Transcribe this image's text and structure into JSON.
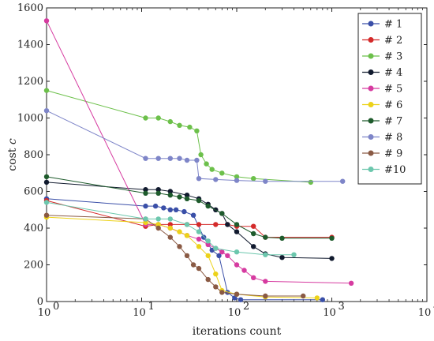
{
  "chart_data": {
    "type": "line",
    "xscale": "log",
    "xlim": [
      1,
      10000
    ],
    "ylim": [
      0,
      1600
    ],
    "xlabel": "iterations count",
    "ylabel": "cost c",
    "grid": false,
    "legend_position": "top-right",
    "x_ticks": [
      1,
      10,
      100,
      1000,
      10000
    ],
    "x_tick_labels": [
      "10",
      "10",
      "10",
      "10",
      "10"
    ],
    "x_tick_exponents": [
      "0",
      "1",
      "2",
      "3",
      "4"
    ],
    "y_ticks": [
      0,
      200,
      400,
      600,
      800,
      1000,
      1200,
      1400,
      1600
    ],
    "y_tick_labels": [
      "0",
      "200",
      "400",
      "600",
      "800",
      "1000",
      "1200",
      "1400",
      "1600"
    ],
    "series": [
      {
        "name": "# 1",
        "color": "#3a4fa8",
        "x": [
          1,
          11,
          14,
          17,
          20,
          23,
          28,
          35,
          45,
          55,
          65,
          80,
          95,
          110,
          800
        ],
        "y": [
          560,
          520,
          520,
          510,
          500,
          500,
          490,
          470,
          350,
          280,
          250,
          50,
          20,
          10,
          10
        ]
      },
      {
        "name": "# 2",
        "color": "#d42a2a",
        "x": [
          1,
          11,
          15,
          20,
          30,
          40,
          60,
          80,
          100,
          150,
          200,
          1000
        ],
        "y": [
          550,
          410,
          420,
          420,
          420,
          420,
          420,
          420,
          410,
          410,
          350,
          350
        ]
      },
      {
        "name": "# 3",
        "color": "#6cc04a",
        "x": [
          1,
          11,
          15,
          20,
          25,
          32,
          38,
          42,
          48,
          55,
          70,
          100,
          150,
          600
        ],
        "y": [
          1150,
          1000,
          1000,
          980,
          960,
          950,
          930,
          800,
          750,
          720,
          700,
          680,
          670,
          650
        ]
      },
      {
        "name": "# 4",
        "color": "#111a2e",
        "x": [
          1,
          11,
          15,
          20,
          30,
          40,
          50,
          60,
          70,
          80,
          100,
          150,
          200,
          300,
          1000
        ],
        "y": [
          650,
          610,
          610,
          600,
          580,
          560,
          530,
          500,
          480,
          420,
          380,
          300,
          260,
          240,
          235
        ]
      },
      {
        "name": "# 5",
        "color": "#d63ba0",
        "x": [
          1,
          11,
          15,
          20,
          30,
          40,
          50,
          60,
          70,
          80,
          100,
          120,
          150,
          200,
          1600
        ],
        "y": [
          1530,
          420,
          420,
          400,
          360,
          340,
          310,
          290,
          270,
          250,
          200,
          170,
          130,
          110,
          100
        ]
      },
      {
        "name": "# 6",
        "color": "#ecd21a",
        "x": [
          1,
          11,
          15,
          20,
          25,
          30,
          40,
          50,
          60,
          70,
          100,
          200,
          700
        ],
        "y": [
          460,
          430,
          420,
          400,
          380,
          360,
          300,
          250,
          150,
          60,
          40,
          25,
          20
        ]
      },
      {
        "name": "# 7",
        "color": "#1e5b2c",
        "x": [
          1,
          11,
          15,
          20,
          25,
          30,
          40,
          50,
          70,
          100,
          150,
          200,
          300,
          1000
        ],
        "y": [
          680,
          590,
          590,
          580,
          570,
          560,
          550,
          520,
          480,
          420,
          370,
          350,
          345,
          345
        ]
      },
      {
        "name": "# 8",
        "color": "#7e85c8",
        "x": [
          1,
          11,
          15,
          20,
          25,
          30,
          38,
          40,
          60,
          100,
          200,
          1300
        ],
        "y": [
          1040,
          780,
          780,
          780,
          780,
          770,
          770,
          670,
          665,
          660,
          655,
          655
        ]
      },
      {
        "name": "# 9",
        "color": "#8a5a44",
        "x": [
          1,
          11,
          15,
          20,
          25,
          30,
          35,
          40,
          50,
          60,
          70,
          100,
          200,
          500
        ],
        "y": [
          470,
          450,
          400,
          350,
          300,
          250,
          200,
          180,
          120,
          80,
          50,
          40,
          30,
          30
        ]
      },
      {
        "name": "#10",
        "color": "#6cc7ad",
        "x": [
          1,
          11,
          15,
          20,
          30,
          40,
          50,
          60,
          100,
          200,
          400
        ],
        "y": [
          540,
          450,
          450,
          450,
          420,
          380,
          330,
          290,
          270,
          255,
          255
        ]
      }
    ]
  }
}
